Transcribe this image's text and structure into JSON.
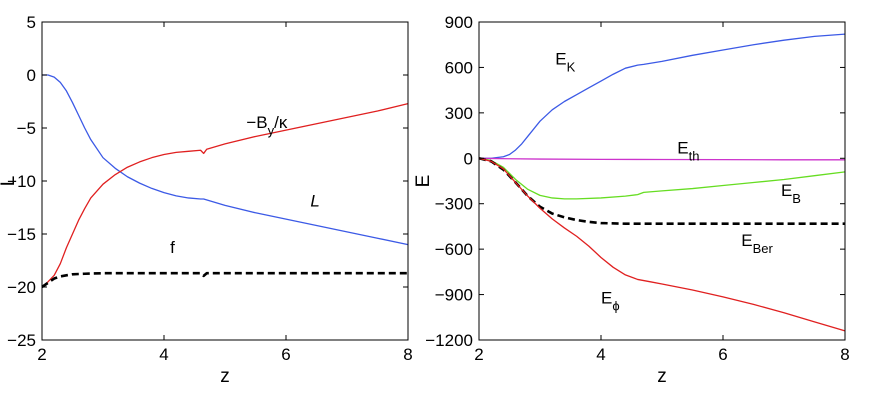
{
  "chart_data": [
    {
      "type": "line",
      "xlabel": "z",
      "ylabel": "L",
      "xlim": [
        2,
        8
      ],
      "ylim": [
        -25,
        5
      ],
      "xticks": [
        "2",
        "4",
        "6",
        "8"
      ],
      "yticks": [
        "5",
        "0",
        "−5",
        "−10",
        "−15",
        "−20",
        "−25"
      ],
      "grid": false,
      "series": [
        {
          "name": "L",
          "color": "#3c5ae6",
          "dash": "solid",
          "x": [
            2.0,
            2.1,
            2.2,
            2.3,
            2.4,
            2.5,
            2.6,
            2.7,
            2.8,
            3.0,
            3.2,
            3.4,
            3.6,
            3.8,
            4.0,
            4.2,
            4.4,
            4.6,
            4.65,
            5.0,
            5.5,
            6.0,
            6.5,
            7.0,
            7.5,
            8.0
          ],
          "y": [
            0.0,
            0.0,
            -0.2,
            -0.7,
            -1.5,
            -2.6,
            -3.8,
            -5.0,
            -6.1,
            -7.8,
            -8.8,
            -9.6,
            -10.2,
            -10.7,
            -11.1,
            -11.4,
            -11.6,
            -11.7,
            -11.7,
            -12.3,
            -13.0,
            -13.6,
            -14.2,
            -14.8,
            -15.4,
            -16.0
          ]
        },
        {
          "name": "-By/kappa",
          "color": "#e02020",
          "dash": "solid",
          "x": [
            2.0,
            2.1,
            2.2,
            2.3,
            2.4,
            2.5,
            2.6,
            2.7,
            2.8,
            3.0,
            3.2,
            3.4,
            3.6,
            3.8,
            4.0,
            4.2,
            4.4,
            4.6,
            4.65,
            4.7,
            5.0,
            5.5,
            6.0,
            6.5,
            7.0,
            7.5,
            8.0
          ],
          "y": [
            -20.0,
            -19.5,
            -18.9,
            -17.8,
            -16.3,
            -15.0,
            -13.7,
            -12.6,
            -11.6,
            -10.3,
            -9.4,
            -8.7,
            -8.2,
            -7.8,
            -7.5,
            -7.3,
            -7.2,
            -7.1,
            -7.4,
            -7.0,
            -6.5,
            -5.8,
            -5.2,
            -4.6,
            -4.0,
            -3.4,
            -2.7
          ]
        },
        {
          "name": "f",
          "color": "#000000",
          "dash": "dashed",
          "x": [
            2.0,
            2.1,
            2.2,
            2.3,
            2.4,
            2.5,
            2.7,
            3.0,
            3.5,
            4.0,
            4.6,
            4.65,
            4.7,
            5.0,
            6.0,
            7.0,
            8.0
          ],
          "y": [
            -20.0,
            -19.6,
            -19.2,
            -19.0,
            -18.9,
            -18.8,
            -18.75,
            -18.7,
            -18.7,
            -18.7,
            -18.7,
            -18.95,
            -18.7,
            -18.7,
            -18.7,
            -18.7,
            -18.7
          ]
        }
      ],
      "annotations": [
        {
          "text": "−B",
          "sub": "y",
          "tail": "/κ",
          "x": 5.35,
          "y": -5.0
        },
        {
          "text": "L",
          "italic": true,
          "x": 6.4,
          "y": -12.4
        },
        {
          "text": "f",
          "x": 4.1,
          "y": -16.8
        }
      ]
    },
    {
      "type": "line",
      "xlabel": "z",
      "ylabel": "E",
      "xlim": [
        2,
        8
      ],
      "ylim": [
        -1200,
        900
      ],
      "xticks": [
        "2",
        "4",
        "6",
        "8"
      ],
      "yticks": [
        "900",
        "600",
        "300",
        "0",
        "−300",
        "−600",
        "−900",
        "−1200"
      ],
      "grid": false,
      "series": [
        {
          "name": "EK",
          "color": "#3c5ae6",
          "dash": "solid",
          "x": [
            2.0,
            2.2,
            2.4,
            2.5,
            2.6,
            2.7,
            2.8,
            3.0,
            3.2,
            3.4,
            3.6,
            3.8,
            4.0,
            4.2,
            4.4,
            4.6,
            4.7,
            5.0,
            5.5,
            6.0,
            6.5,
            7.0,
            7.5,
            8.0
          ],
          "y": [
            0,
            0,
            10,
            25,
            55,
            95,
            145,
            245,
            320,
            375,
            420,
            465,
            510,
            555,
            595,
            615,
            620,
            640,
            680,
            715,
            750,
            780,
            805,
            820
          ]
        },
        {
          "name": "Eth",
          "color": "#cc33cc",
          "dash": "solid",
          "x": [
            2.0,
            2.5,
            3.0,
            4.0,
            5.0,
            6.0,
            7.0,
            8.0
          ],
          "y": [
            0,
            -3,
            -5,
            -7,
            -8,
            -9,
            -10,
            -10
          ]
        },
        {
          "name": "EB",
          "color": "#66dd22",
          "dash": "solid",
          "x": [
            2.0,
            2.2,
            2.4,
            2.6,
            2.8,
            3.0,
            3.2,
            3.4,
            3.6,
            4.0,
            4.4,
            4.6,
            4.7,
            5.0,
            5.5,
            6.0,
            6.5,
            7.0,
            7.5,
            8.0
          ],
          "y": [
            0,
            -15,
            -60,
            -140,
            -205,
            -245,
            -262,
            -268,
            -268,
            -262,
            -250,
            -240,
            -225,
            -215,
            -200,
            -180,
            -160,
            -140,
            -115,
            -90
          ]
        },
        {
          "name": "EBer",
          "color": "#000000",
          "dash": "dashed",
          "x": [
            2.0,
            2.2,
            2.4,
            2.6,
            2.8,
            3.0,
            3.2,
            3.4,
            3.6,
            3.8,
            4.0,
            4.4,
            4.8,
            5.5,
            6.0,
            7.0,
            8.0
          ],
          "y": [
            0,
            -20,
            -75,
            -160,
            -250,
            -320,
            -365,
            -390,
            -408,
            -420,
            -428,
            -432,
            -432,
            -432,
            -432,
            -432,
            -432
          ]
        },
        {
          "name": "Ephi",
          "color": "#e02020",
          "dash": "solid",
          "x": [
            2.0,
            2.2,
            2.4,
            2.6,
            2.8,
            3.0,
            3.2,
            3.4,
            3.6,
            3.8,
            4.0,
            4.2,
            4.4,
            4.6,
            4.8,
            5.0,
            5.5,
            6.0,
            6.5,
            7.0,
            7.5,
            8.0
          ],
          "y": [
            0,
            -20,
            -70,
            -160,
            -250,
            -330,
            -400,
            -460,
            -515,
            -580,
            -655,
            -720,
            -770,
            -800,
            -815,
            -830,
            -870,
            -915,
            -965,
            -1020,
            -1080,
            -1140
          ]
        }
      ],
      "annotations": [
        {
          "text": "E",
          "sub": "K",
          "x": 3.25,
          "y": 620
        },
        {
          "text": "E",
          "sub": "th",
          "x": 5.25,
          "y": 30
        },
        {
          "text": "E",
          "sub": "B",
          "x": 6.95,
          "y": -250
        },
        {
          "text": "E",
          "sub": "Ber",
          "x": 6.3,
          "y": -580
        },
        {
          "text": "E",
          "sub": "ϕ",
          "x": 4.0,
          "y": -960
        }
      ]
    }
  ]
}
